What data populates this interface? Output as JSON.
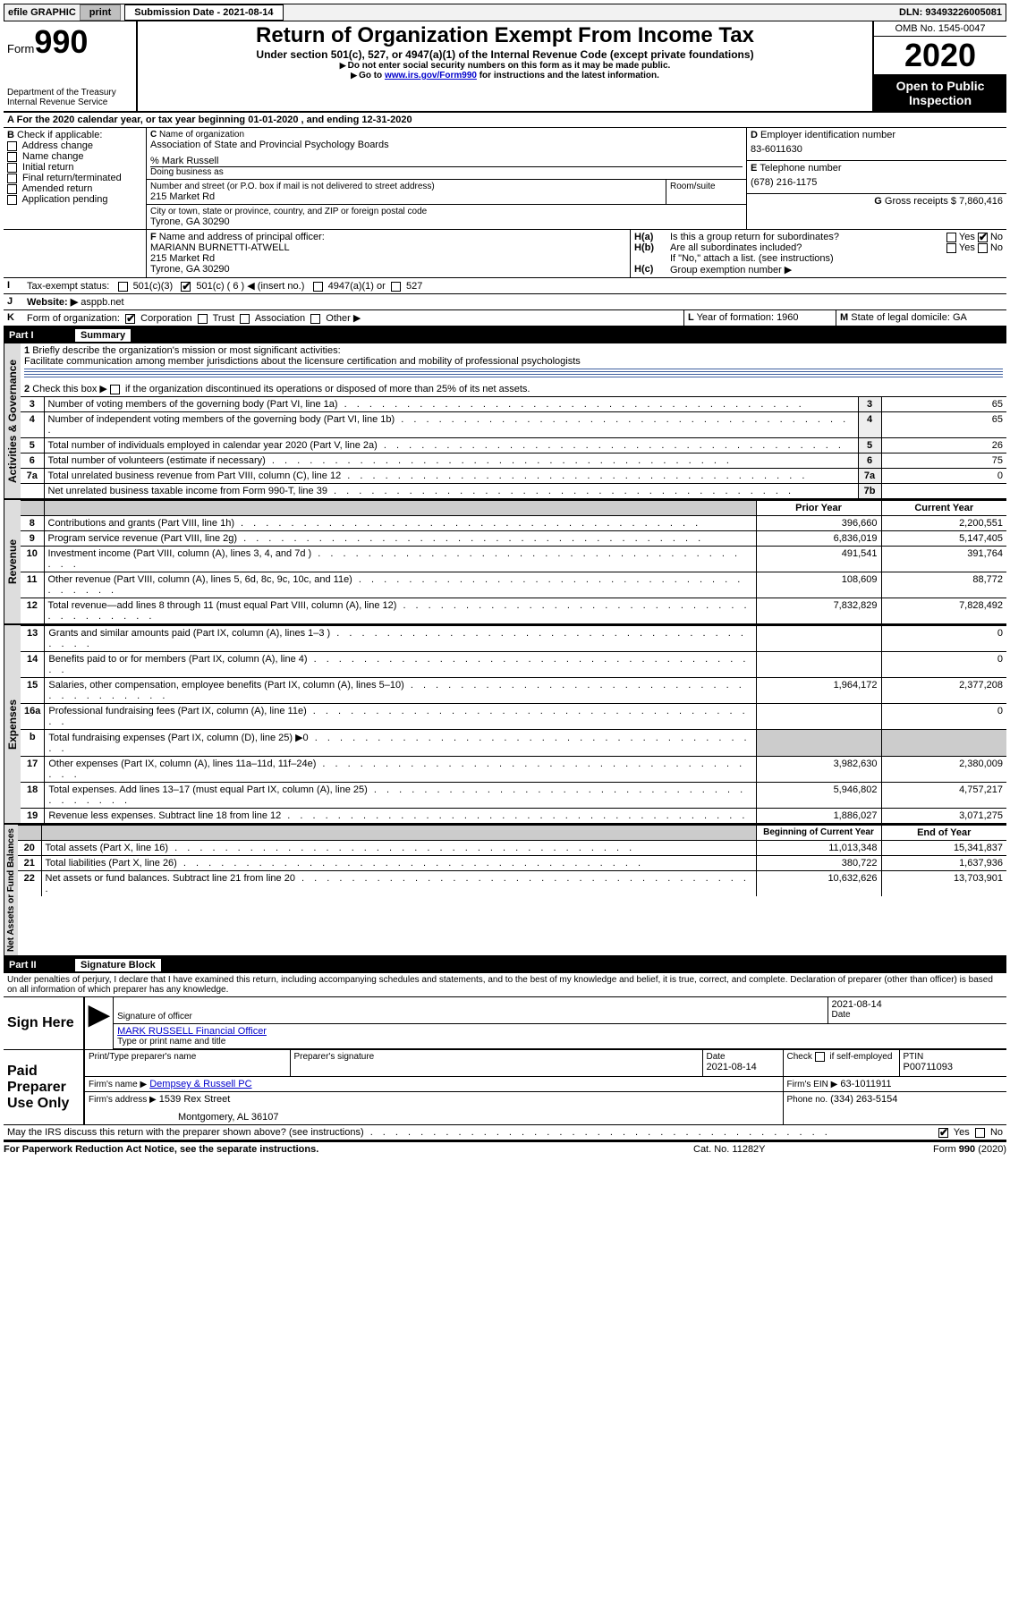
{
  "topbar": {
    "efile": "efile GRAPHIC",
    "print": "print",
    "sublabel": "Submission Date - 2021-08-14",
    "dln": "DLN: 93493226005081"
  },
  "header": {
    "form": "Form",
    "formno": "990",
    "dept": "Department of the Treasury\nInternal Revenue Service",
    "title": "Return of Organization Exempt From Income Tax",
    "under": "Under section 501(c), 527, or 4947(a)(1) of the Internal Revenue Code (except private foundations)",
    "note1": "Do not enter social security numbers on this form as it may be made public.",
    "note2_a": "Go to ",
    "note2_link": "www.irs.gov/Form990",
    "note2_b": " for instructions and the latest information.",
    "omb": "OMB No. 1545-0047",
    "year": "2020",
    "open": "Open to Public Inspection"
  },
  "period": {
    "line": "For the 2020 calendar year, or tax year beginning 01-01-2020    , and ending 12-31-2020"
  },
  "boxB": {
    "title": "Check if applicable:",
    "items": [
      "Address change",
      "Name change",
      "Initial return",
      "Final return/terminated",
      "Amended return",
      "Application pending"
    ]
  },
  "boxC": {
    "label_name": "Name of organization",
    "name": "Association of State and Provincial Psychology Boards",
    "co": "% Mark Russell",
    "dba_label": "Doing business as",
    "addr_label": "Number and street (or P.O. box if mail is not delivered to street address)",
    "room_label": "Room/suite",
    "addr": "215 Market Rd",
    "city_label": "City or town, state or province, country, and ZIP or foreign postal code",
    "city": "Tyrone, GA  30290"
  },
  "boxD": {
    "label": "Employer identification number",
    "ein": "83-6011630"
  },
  "boxE": {
    "label": "Telephone number",
    "phone": "(678) 216-1175"
  },
  "boxG": {
    "label": "Gross receipts $",
    "val": "7,860,416"
  },
  "boxF": {
    "label": "Name and address of principal officer:",
    "name": "MARIANN BURNETTI-ATWELL",
    "addr1": "215 Market Rd",
    "addr2": "Tyrone, GA  30290"
  },
  "boxH": {
    "ha": "Is this a group return for subordinates?",
    "hb": "Are all subordinates included?",
    "hnote": "If \"No,\" attach a list. (see instructions)",
    "hc": "Group exemption number ▶"
  },
  "boxI": {
    "label": "Tax-exempt status:",
    "c3": "501(c)(3)",
    "c_insert": "501(c) ( 6 ) ◀ (insert no.)",
    "a1": "4947(a)(1) or",
    "s527": "527"
  },
  "boxJ": {
    "label": "Website: ▶",
    "val": "asppb.net"
  },
  "boxK": {
    "label": "Form of organization:",
    "corp": "Corporation",
    "trust": "Trust",
    "assoc": "Association",
    "other": "Other ▶"
  },
  "boxL": {
    "label": "Year of formation:",
    "val": "1960"
  },
  "boxM": {
    "label": "State of legal domicile:",
    "val": "GA"
  },
  "part1": {
    "name": "Part I",
    "title": "Summary",
    "vlabel_ag": "Activities & Governance",
    "vlabel_rev": "Revenue",
    "vlabel_exp": "Expenses",
    "vlabel_na": "Net Assets or Fund Balances",
    "q1": "Briefly describe the organization's mission or most significant activities:",
    "q1_ans": "Facilitate communication among member jurisdictions about the licensure certification and mobility of professional psychologists",
    "q2": "Check this box ▶         if the organization discontinued its operations or disposed of more than 25% of its net assets.",
    "rows_ag": [
      {
        "n": "3",
        "t": "Number of voting members of the governing body (Part VI, line 1a)",
        "c": "3",
        "v": "65"
      },
      {
        "n": "4",
        "t": "Number of independent voting members of the governing body (Part VI, line 1b)",
        "c": "4",
        "v": "65"
      },
      {
        "n": "5",
        "t": "Total number of individuals employed in calendar year 2020 (Part V, line 2a)",
        "c": "5",
        "v": "26"
      },
      {
        "n": "6",
        "t": "Total number of volunteers (estimate if necessary)",
        "c": "6",
        "v": "75"
      },
      {
        "n": "7a",
        "t": "Total unrelated business revenue from Part VIII, column (C), line 12",
        "c": "7a",
        "v": "0"
      },
      {
        "n": "",
        "t": "Net unrelated business taxable income from Form 990-T, line 39",
        "c": "7b",
        "v": ""
      }
    ],
    "col_prior": "Prior Year",
    "col_curr": "Current Year",
    "rows_rev": [
      {
        "n": "8",
        "t": "Contributions and grants (Part VIII, line 1h)",
        "p": "396,660",
        "c": "2,200,551"
      },
      {
        "n": "9",
        "t": "Program service revenue (Part VIII, line 2g)",
        "p": "6,836,019",
        "c": "5,147,405"
      },
      {
        "n": "10",
        "t": "Investment income (Part VIII, column (A), lines 3, 4, and 7d )",
        "p": "491,541",
        "c": "391,764"
      },
      {
        "n": "11",
        "t": "Other revenue (Part VIII, column (A), lines 5, 6d, 8c, 9c, 10c, and 11e)",
        "p": "108,609",
        "c": "88,772"
      },
      {
        "n": "12",
        "t": "Total revenue—add lines 8 through 11 (must equal Part VIII, column (A), line 12)",
        "p": "7,832,829",
        "c": "7,828,492"
      }
    ],
    "rows_exp": [
      {
        "n": "13",
        "t": "Grants and similar amounts paid (Part IX, column (A), lines 1–3 )",
        "p": "",
        "c": "0"
      },
      {
        "n": "14",
        "t": "Benefits paid to or for members (Part IX, column (A), line 4)",
        "p": "",
        "c": "0"
      },
      {
        "n": "15",
        "t": "Salaries, other compensation, employee benefits (Part IX, column (A), lines 5–10)",
        "p": "1,964,172",
        "c": "2,377,208"
      },
      {
        "n": "16a",
        "t": "Professional fundraising fees (Part IX, column (A), line 11e)",
        "p": "",
        "c": "0"
      },
      {
        "n": "b",
        "t": "Total fundraising expenses (Part IX, column (D), line 25) ▶0",
        "p": "shade",
        "c": "shade"
      },
      {
        "n": "17",
        "t": "Other expenses (Part IX, column (A), lines 11a–11d, 11f–24e)",
        "p": "3,982,630",
        "c": "2,380,009"
      },
      {
        "n": "18",
        "t": "Total expenses. Add lines 13–17 (must equal Part IX, column (A), line 25)",
        "p": "5,946,802",
        "c": "4,757,217"
      },
      {
        "n": "19",
        "t": "Revenue less expenses. Subtract line 18 from line 12",
        "p": "1,886,027",
        "c": "3,071,275"
      }
    ],
    "col_beg": "Beginning of Current Year",
    "col_end": "End of Year",
    "rows_na": [
      {
        "n": "20",
        "t": "Total assets (Part X, line 16)",
        "p": "11,013,348",
        "c": "15,341,837"
      },
      {
        "n": "21",
        "t": "Total liabilities (Part X, line 26)",
        "p": "380,722",
        "c": "1,637,936"
      },
      {
        "n": "22",
        "t": "Net assets or fund balances. Subtract line 21 from line 20",
        "p": "10,632,626",
        "c": "13,703,901"
      }
    ]
  },
  "part2": {
    "name": "Part II",
    "title": "Signature Block",
    "decl": "Under penalties of perjury, I declare that I have examined this return, including accompanying schedules and statements, and to the best of my knowledge and belief, it is true, correct, and complete. Declaration of preparer (other than officer) is based on all information of which preparer has any knowledge.",
    "sign_here": "Sign Here",
    "sig_officer": "Signature of officer",
    "date": "Date",
    "date_val": "2021-08-14",
    "name_title": "MARK RUSSELL Financial Officer",
    "type_name": "Type or print name and title",
    "paid": "Paid Preparer Use Only",
    "prep_name_label": "Print/Type preparer's name",
    "prep_sig_label": "Preparer's signature",
    "prep_date": "2021-08-14",
    "check_self": "Check         if self-employed",
    "ptin_label": "PTIN",
    "ptin": "P00711093",
    "firm_name_label": "Firm's name    ▶",
    "firm_name": "Dempsey & Russell PC",
    "firm_ein_label": "Firm's EIN ▶",
    "firm_ein": "63-1011911",
    "firm_addr_label": "Firm's address ▶",
    "firm_addr1": "1539 Rex Street",
    "firm_addr2": "Montgomery, AL  36107",
    "phone_label": "Phone no.",
    "phone": "(334) 263-5154",
    "discuss": "May the IRS discuss this return with the preparer shown above? (see instructions)",
    "yes": "Yes",
    "no": "No"
  },
  "footer": {
    "paperwork": "For Paperwork Reduction Act Notice, see the separate instructions.",
    "cat": "Cat. No. 11282Y",
    "form": "Form 990 (2020)"
  }
}
